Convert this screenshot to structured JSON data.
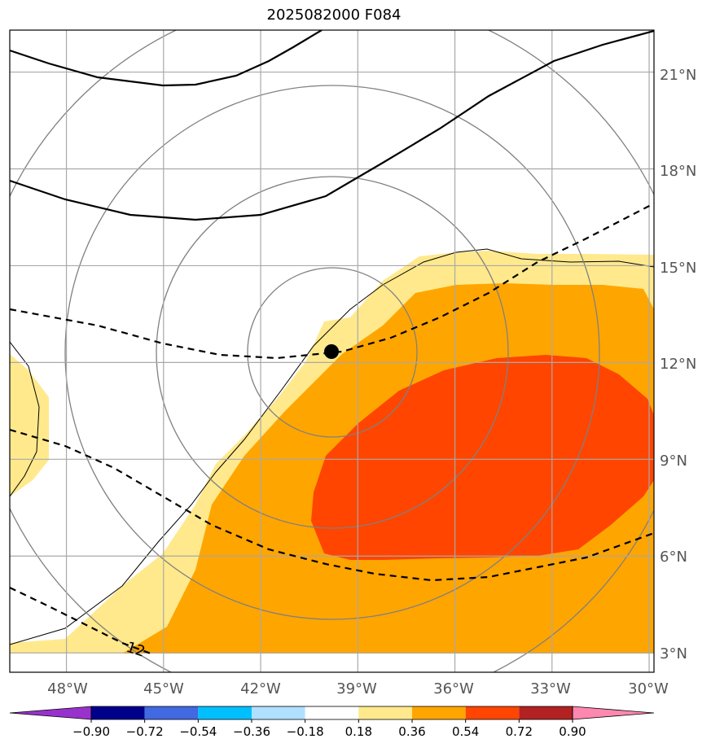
{
  "title": "2025082000 F084",
  "map": {
    "lon_range": [
      -49.75,
      -29.85
    ],
    "lat_range": [
      2.4,
      22.3
    ],
    "lon_ticks": [
      "48°W",
      "45°W",
      "42°W",
      "39°W",
      "36°W",
      "33°W",
      "30°W"
    ],
    "lon_tick_values": [
      -48,
      -45,
      -42,
      -39,
      -36,
      -33,
      -30
    ],
    "lat_ticks": [
      "3°N",
      "6°N",
      "9°N",
      "12°N",
      "15°N",
      "18°N",
      "21°N"
    ],
    "lat_tick_values": [
      3,
      6,
      9,
      12,
      15,
      18,
      21
    ],
    "storm_center": {
      "lon": -39.75,
      "lat": 12.4
    },
    "contour_label": "12"
  },
  "colorbar": {
    "labels": [
      "−0.90",
      "−0.72",
      "−0.54",
      "−0.36",
      "−0.18",
      "0.18",
      "0.36",
      "0.54",
      "0.72",
      "0.90"
    ],
    "colors": [
      "#9932cc",
      "#00008b",
      "#4169e1",
      "#00bfff",
      "#b0e0ff",
      "#ffffff",
      "#ffe98c",
      "#ffa500",
      "#ff4500",
      "#b22222",
      "#ff88b0"
    ]
  },
  "colors": {
    "level_018_036": "#ffe98c",
    "level_036_054": "#ffa500",
    "level_054_072": "#ff4500",
    "grid": "#a9a9a9",
    "coast": "#000000"
  }
}
